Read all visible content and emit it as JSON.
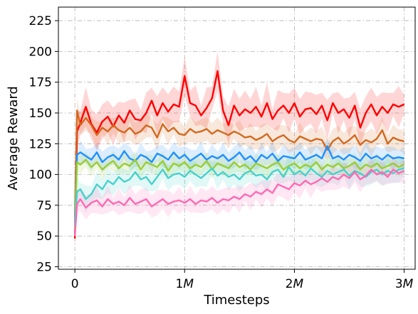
{
  "chart_data": {
    "type": "line",
    "xlabel": "Timesteps",
    "ylabel": "Average Reward",
    "xlim": [
      -150000,
      3100000
    ],
    "ylim": [
      23,
      236
    ],
    "xticks": [
      0,
      1000000,
      2000000,
      3000000
    ],
    "xtick_labels": [
      "0",
      "1M",
      "2M",
      "3M"
    ],
    "yticks": [
      25,
      50,
      75,
      100,
      125,
      150,
      175,
      200,
      225
    ],
    "ytick_labels": [
      "25",
      "50",
      "75",
      "100",
      "125",
      "150",
      "175",
      "200",
      "225"
    ],
    "grid": true,
    "shaded_band": "std",
    "series": [
      {
        "color": "#ff0000",
        "x": [
          0,
          20000,
          50000,
          100000,
          150000,
          200000,
          250000,
          300000,
          350000,
          400000,
          450000,
          500000,
          550000,
          600000,
          650000,
          700000,
          750000,
          800000,
          850000,
          900000,
          950000,
          1000000,
          1050000,
          1100000,
          1150000,
          1200000,
          1250000,
          1300000,
          1350000,
          1400000,
          1450000,
          1500000,
          1550000,
          1600000,
          1650000,
          1700000,
          1750000,
          1800000,
          1850000,
          1900000,
          1950000,
          2000000,
          2050000,
          2100000,
          2150000,
          2200000,
          2250000,
          2300000,
          2350000,
          2400000,
          2450000,
          2500000,
          2550000,
          2600000,
          2650000,
          2700000,
          2750000,
          2800000,
          2850000,
          2900000,
          2950000,
          3000000
        ],
        "y": [
          48,
          135,
          142,
          155,
          141,
          134,
          143,
          147,
          139,
          148,
          142,
          152,
          145,
          144,
          150,
          160,
          148,
          158,
          151,
          157,
          155,
          180,
          158,
          156,
          148,
          154,
          162,
          184,
          152,
          140,
          156,
          148,
          153,
          150,
          155,
          147,
          158,
          145,
          152,
          156,
          150,
          158,
          147,
          153,
          154,
          149,
          156,
          144,
          158,
          150,
          153,
          146,
          156,
          138,
          150,
          157,
          148,
          155,
          150,
          157,
          155,
          157
        ],
        "std": 12
      },
      {
        "color": "#d2691e",
        "x": [
          0,
          20000,
          50000,
          100000,
          150000,
          200000,
          250000,
          300000,
          350000,
          400000,
          450000,
          500000,
          550000,
          600000,
          650000,
          700000,
          750000,
          800000,
          850000,
          900000,
          950000,
          1000000,
          1050000,
          1100000,
          1150000,
          1200000,
          1250000,
          1300000,
          1350000,
          1400000,
          1450000,
          1500000,
          1550000,
          1600000,
          1650000,
          1700000,
          1750000,
          1800000,
          1850000,
          1900000,
          1950000,
          2000000,
          2050000,
          2100000,
          2150000,
          2200000,
          2250000,
          2300000,
          2350000,
          2400000,
          2450000,
          2500000,
          2550000,
          2600000,
          2650000,
          2700000,
          2750000,
          2800000,
          2850000,
          2900000,
          2950000,
          3000000
        ],
        "y": [
          65,
          152,
          140,
          146,
          140,
          132,
          138,
          135,
          140,
          136,
          134,
          138,
          133,
          135,
          140,
          138,
          130,
          141,
          135,
          138,
          133,
          132,
          137,
          134,
          135,
          137,
          133,
          136,
          134,
          132,
          135,
          133,
          130,
          131,
          128,
          130,
          133,
          127,
          130,
          132,
          128,
          126,
          131,
          129,
          127,
          129,
          128,
          120,
          127,
          130,
          125,
          128,
          132,
          124,
          128,
          126,
          129,
          136,
          125,
          130,
          128,
          127
        ],
        "std": 8
      },
      {
        "color": "#1e90ff",
        "x": [
          0,
          20000,
          50000,
          100000,
          150000,
          200000,
          250000,
          300000,
          350000,
          400000,
          450000,
          500000,
          550000,
          600000,
          650000,
          700000,
          750000,
          800000,
          850000,
          900000,
          950000,
          1000000,
          1050000,
          1100000,
          1150000,
          1200000,
          1250000,
          1300000,
          1350000,
          1400000,
          1450000,
          1500000,
          1550000,
          1600000,
          1650000,
          1700000,
          1750000,
          1800000,
          1850000,
          1900000,
          1950000,
          2000000,
          2050000,
          2100000,
          2150000,
          2200000,
          2250000,
          2300000,
          2350000,
          2400000,
          2450000,
          2500000,
          2550000,
          2600000,
          2650000,
          2700000,
          2750000,
          2800000,
          2850000,
          2900000,
          2950000,
          3000000
        ],
        "y": [
          60,
          116,
          118,
          115,
          112,
          118,
          110,
          114,
          116,
          112,
          119,
          113,
          111,
          116,
          114,
          110,
          117,
          115,
          112,
          118,
          113,
          116,
          111,
          114,
          117,
          112,
          115,
          113,
          116,
          111,
          114,
          118,
          112,
          115,
          110,
          116,
          113,
          117,
          111,
          115,
          114,
          113,
          118,
          112,
          114,
          116,
          113,
          123,
          113,
          115,
          112,
          116,
          114,
          111,
          117,
          113,
          115,
          112,
          116,
          113,
          114,
          113
        ],
        "std": 7
      },
      {
        "color": "#9acd32",
        "x": [
          0,
          20000,
          50000,
          100000,
          150000,
          200000,
          250000,
          300000,
          350000,
          400000,
          450000,
          500000,
          550000,
          600000,
          650000,
          700000,
          750000,
          800000,
          850000,
          900000,
          950000,
          1000000,
          1050000,
          1100000,
          1150000,
          1200000,
          1250000,
          1300000,
          1350000,
          1400000,
          1450000,
          1500000,
          1550000,
          1600000,
          1650000,
          1700000,
          1750000,
          1800000,
          1850000,
          1900000,
          1950000,
          2000000,
          2050000,
          2100000,
          2150000,
          2200000,
          2250000,
          2300000,
          2350000,
          2400000,
          2450000,
          2500000,
          2550000,
          2600000,
          2650000,
          2700000,
          2750000,
          2800000,
          2850000,
          2900000,
          2950000,
          3000000
        ],
        "y": [
          55,
          110,
          108,
          112,
          106,
          110,
          104,
          108,
          111,
          105,
          109,
          107,
          112,
          104,
          110,
          108,
          106,
          111,
          103,
          109,
          107,
          110,
          105,
          108,
          106,
          111,
          104,
          109,
          107,
          105,
          110,
          106,
          108,
          104,
          109,
          107,
          105,
          108,
          110,
          104,
          107,
          109,
          105,
          108,
          106,
          110,
          104,
          108,
          106,
          109,
          105,
          107,
          110,
          104,
          108,
          106,
          109,
          105,
          107,
          109,
          106,
          108
        ],
        "std": 6
      },
      {
        "color": "#48d1cc",
        "x": [
          0,
          20000,
          50000,
          100000,
          150000,
          200000,
          250000,
          300000,
          350000,
          400000,
          450000,
          500000,
          550000,
          600000,
          650000,
          700000,
          750000,
          800000,
          850000,
          900000,
          950000,
          1000000,
          1050000,
          1100000,
          1150000,
          1200000,
          1250000,
          1300000,
          1350000,
          1400000,
          1450000,
          1500000,
          1550000,
          1600000,
          1650000,
          1700000,
          1750000,
          1800000,
          1850000,
          1900000,
          1950000,
          2000000,
          2050000,
          2100000,
          2150000,
          2200000,
          2250000,
          2300000,
          2350000,
          2400000,
          2450000,
          2500000,
          2550000,
          2600000,
          2650000,
          2700000,
          2750000,
          2800000,
          2850000,
          2900000,
          2950000,
          3000000
        ],
        "y": [
          58,
          86,
          88,
          80,
          84,
          92,
          88,
          95,
          92,
          98,
          94,
          96,
          102,
          96,
          98,
          92,
          98,
          104,
          97,
          100,
          101,
          98,
          103,
          100,
          97,
          101,
          105,
          99,
          102,
          98,
          100,
          96,
          101,
          103,
          99,
          100,
          96,
          102,
          104,
          98,
          106,
          100,
          103,
          99,
          105,
          101,
          98,
          103,
          100,
          102,
          104,
          99,
          103,
          101,
          98,
          102,
          104,
          100,
          103,
          101,
          104,
          105
        ],
        "std": 8
      },
      {
        "color": "#ff69b4",
        "x": [
          0,
          20000,
          50000,
          100000,
          150000,
          200000,
          250000,
          300000,
          350000,
          400000,
          450000,
          500000,
          550000,
          600000,
          650000,
          700000,
          750000,
          800000,
          850000,
          900000,
          950000,
          1000000,
          1050000,
          1100000,
          1150000,
          1200000,
          1250000,
          1300000,
          1350000,
          1400000,
          1450000,
          1500000,
          1550000,
          1600000,
          1650000,
          1700000,
          1750000,
          1800000,
          1850000,
          1900000,
          1950000,
          2000000,
          2050000,
          2100000,
          2150000,
          2200000,
          2250000,
          2300000,
          2350000,
          2400000,
          2450000,
          2500000,
          2550000,
          2600000,
          2650000,
          2700000,
          2750000,
          2800000,
          2850000,
          2900000,
          2950000,
          3000000
        ],
        "y": [
          50,
          76,
          80,
          73,
          77,
          79,
          74,
          80,
          76,
          78,
          75,
          81,
          76,
          78,
          80,
          74,
          77,
          80,
          76,
          78,
          79,
          77,
          80,
          76,
          79,
          78,
          81,
          77,
          80,
          79,
          82,
          80,
          84,
          82,
          86,
          84,
          88,
          85,
          92,
          90,
          88,
          93,
          91,
          95,
          92,
          94,
          97,
          94,
          98,
          96,
          100,
          97,
          102,
          96,
          99,
          104,
          100,
          102,
          98,
          104,
          101,
          103
        ],
        "std": 8
      }
    ]
  }
}
